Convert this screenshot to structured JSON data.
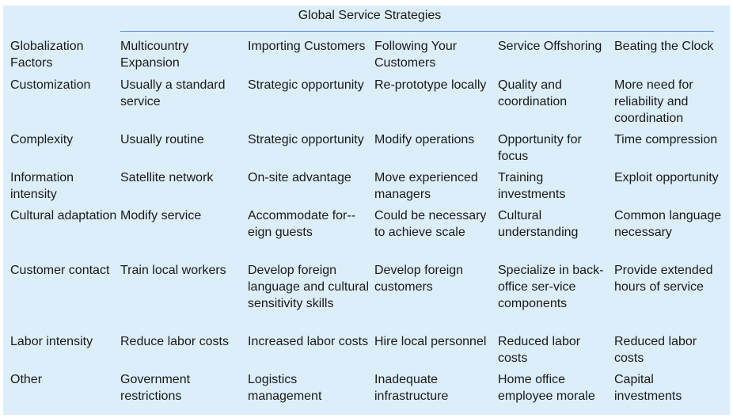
{
  "title": "Global Service Strategies",
  "header": [
    "Globalization Factors",
    "Multicountry Expansion",
    "Importing Customers",
    "Following Your Customers",
    "Service Offshoring",
    "Beating the Clock"
  ],
  "rows": [
    [
      "Customization",
      "Usually a standard service",
      "Strategic opportunity",
      "Re-prototype locally",
      "Quality and coordination",
      "More need for reliability and coordination"
    ],
    [
      "Complexity",
      "Usually routine",
      "Strategic opportunity",
      "Modify operations",
      "Opportunity for focus",
      "Time compression"
    ],
    [
      "Information intensity",
      "Satellite network",
      "On-site advantage",
      "Move experienced managers",
      "Training investments",
      "Exploit opportunity"
    ],
    [
      "Cultural adaptation",
      "Modify service",
      "Accommodate for-­eign guests",
      "Could be necessary to achieve scale",
      "Cultural understanding",
      "Common language necessary"
    ],
    [
      "Customer contact",
      "Train local workers",
      "Develop foreign language and cultural sensitivity skills",
      "Develop foreign customers",
      "Specialize in back-office ser-­vice components",
      "Provide extended hours of service"
    ],
    [
      "Labor intensity",
      "Reduce labor costs",
      "Increased labor costs",
      "Hire local personnel",
      "Reduced labor costs",
      "Reduced labor costs"
    ],
    [
      "Other",
      "Government restrictions",
      "Logistics management",
      "Inadequate infrastructure",
      "Home office employee morale",
      "Capital investments"
    ]
  ]
}
